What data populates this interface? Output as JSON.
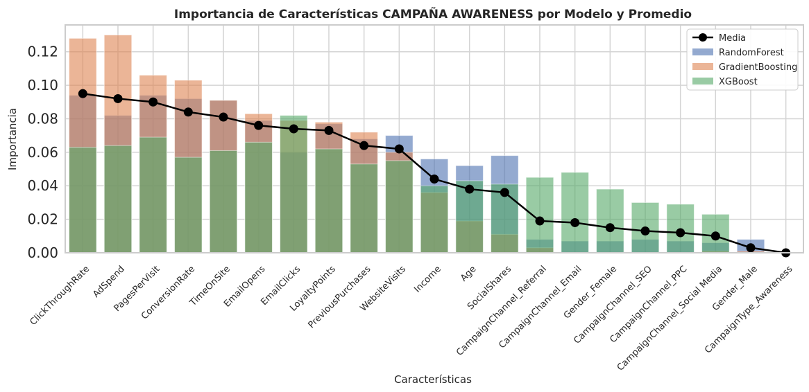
{
  "chart_data": {
    "type": "bar",
    "title": "Importancia de Características CAMPAÑA AWARENESS por Modelo y Promedio",
    "xlabel": "Características",
    "ylabel": "Importancia",
    "ylim": [
      0,
      0.136
    ],
    "yticks": [
      "0.00",
      "0.02",
      "0.04",
      "0.06",
      "0.08",
      "0.10",
      "0.12"
    ],
    "grid": true,
    "legend_position": "top-right",
    "categories": [
      "ClickThroughRate",
      "AdSpend",
      "PagesPerVisit",
      "ConversionRate",
      "TimeOnSite",
      "EmailOpens",
      "EmailClicks",
      "LoyaltyPoints",
      "PreviousPurchases",
      "WebsiteVisits",
      "Income",
      "Age",
      "SocialShares",
      "CampaignChannel_Referral",
      "CampaignChannel_Email",
      "Gender_Female",
      "CampaignChannel_SEO",
      "CampaignChannel_PPC",
      "CampaignChannel_Social Media",
      "Gender_Male",
      "CampaignType_Awareness"
    ],
    "series": [
      {
        "name": "RandomForest",
        "color": "#4c72b0",
        "values": [
          0.094,
          0.082,
          0.094,
          0.092,
          0.091,
          0.079,
          0.06,
          0.077,
          0.068,
          0.07,
          0.056,
          0.052,
          0.058,
          0.008,
          0.007,
          0.007,
          0.008,
          0.007,
          0.006,
          0.008,
          0.0
        ]
      },
      {
        "name": "GradientBoosting",
        "color": "#dd8452",
        "values": [
          0.128,
          0.13,
          0.106,
          0.103,
          0.091,
          0.083,
          0.079,
          0.078,
          0.072,
          0.06,
          0.036,
          0.019,
          0.011,
          0.003,
          0.0,
          0.0,
          0.0,
          0.0,
          0.001,
          0.001,
          0.0
        ]
      },
      {
        "name": "XGBoost",
        "color": "#55a868",
        "values": [
          0.063,
          0.064,
          0.069,
          0.057,
          0.061,
          0.066,
          0.082,
          0.062,
          0.053,
          0.055,
          0.04,
          0.043,
          0.041,
          0.045,
          0.048,
          0.038,
          0.03,
          0.029,
          0.023,
          0.0,
          0.0
        ]
      },
      {
        "name": "Media",
        "color": "#000000",
        "kind": "line",
        "values": [
          0.095,
          0.092,
          0.09,
          0.084,
          0.081,
          0.076,
          0.074,
          0.073,
          0.064,
          0.062,
          0.044,
          0.038,
          0.036,
          0.019,
          0.018,
          0.015,
          0.013,
          0.012,
          0.01,
          0.003,
          0.0
        ]
      }
    ],
    "legend_order": [
      "Media",
      "RandomForest",
      "GradientBoosting",
      "XGBoost"
    ]
  }
}
